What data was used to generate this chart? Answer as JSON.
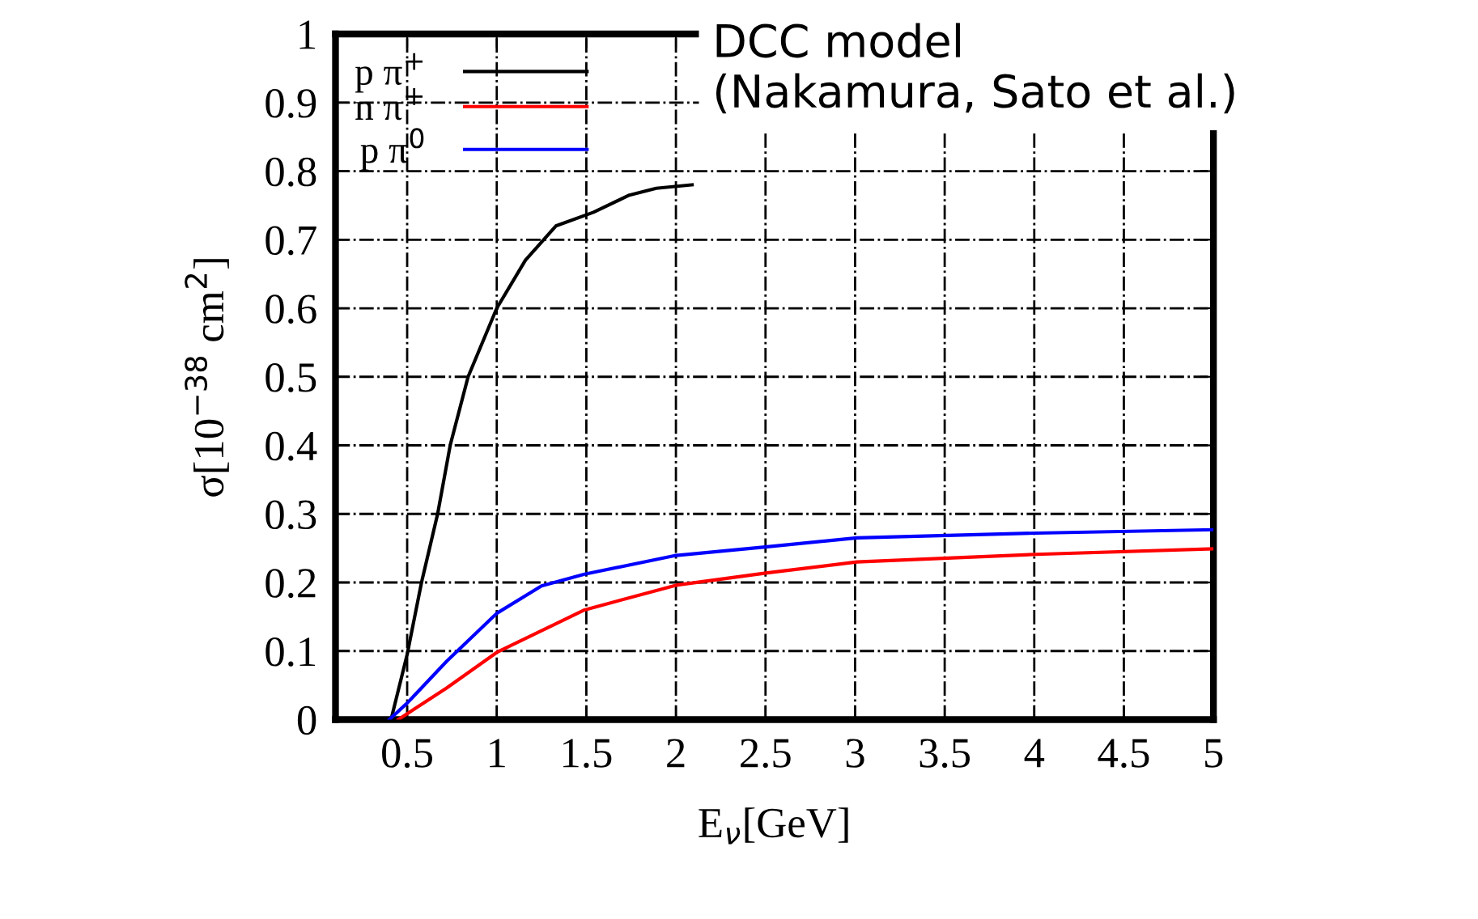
{
  "chart_data": {
    "type": "line",
    "xlabel": "E$_{ν}$[GeV]",
    "ylabel": "σ[10$^{−38}$ cm$^{2}$]",
    "series": [
      {
        "name": "p π$^{+}$",
        "color": "#000000",
        "x": [
          0.41,
          0.5,
          0.58,
          0.67,
          0.74,
          0.84,
          1.0,
          1.16,
          1.33,
          1.54,
          1.74,
          1.89,
          2.09
        ],
        "values": [
          0,
          0.095,
          0.2,
          0.3,
          0.4,
          0.5,
          0.6,
          0.67,
          0.72,
          0.74,
          0.765,
          0.775,
          0.78
        ]
      },
      {
        "name": "n π$^{+}$",
        "color": "#ff0000",
        "x": [
          0.45,
          0.72,
          1.0,
          1.49,
          2.0,
          2.51,
          3.01,
          4.01,
          5.0
        ],
        "values": [
          0,
          0.046,
          0.098,
          0.16,
          0.196,
          0.214,
          0.23,
          0.241,
          0.249
        ]
      },
      {
        "name": "p π$^{0}$",
        "color": "#0000ff",
        "x": [
          0.4,
          0.5,
          0.72,
          1.0,
          1.25,
          1.49,
          1.99,
          2.51,
          3.01,
          4.01,
          5.0
        ],
        "values": [
          0,
          0.024,
          0.085,
          0.155,
          0.195,
          0.212,
          0.239,
          0.252,
          0.265,
          0.272,
          0.277
        ]
      }
    ],
    "xlim": [
      0.1,
      5
    ],
    "xticks": [
      0.5,
      1,
      1.5,
      2,
      2.5,
      3,
      3.5,
      4,
      4.5,
      5
    ],
    "ylim": [
      0,
      1
    ],
    "yticks": [
      0,
      0.1,
      0.2,
      0.3,
      0.4,
      0.5,
      0.6,
      0.7,
      0.8,
      0.9,
      1
    ],
    "grid": true,
    "legend": "top left",
    "marker": "none",
    "line_style": "solid",
    "annotations": [
      "DCC model\n(Nakamura, Sato et al.)"
    ]
  }
}
